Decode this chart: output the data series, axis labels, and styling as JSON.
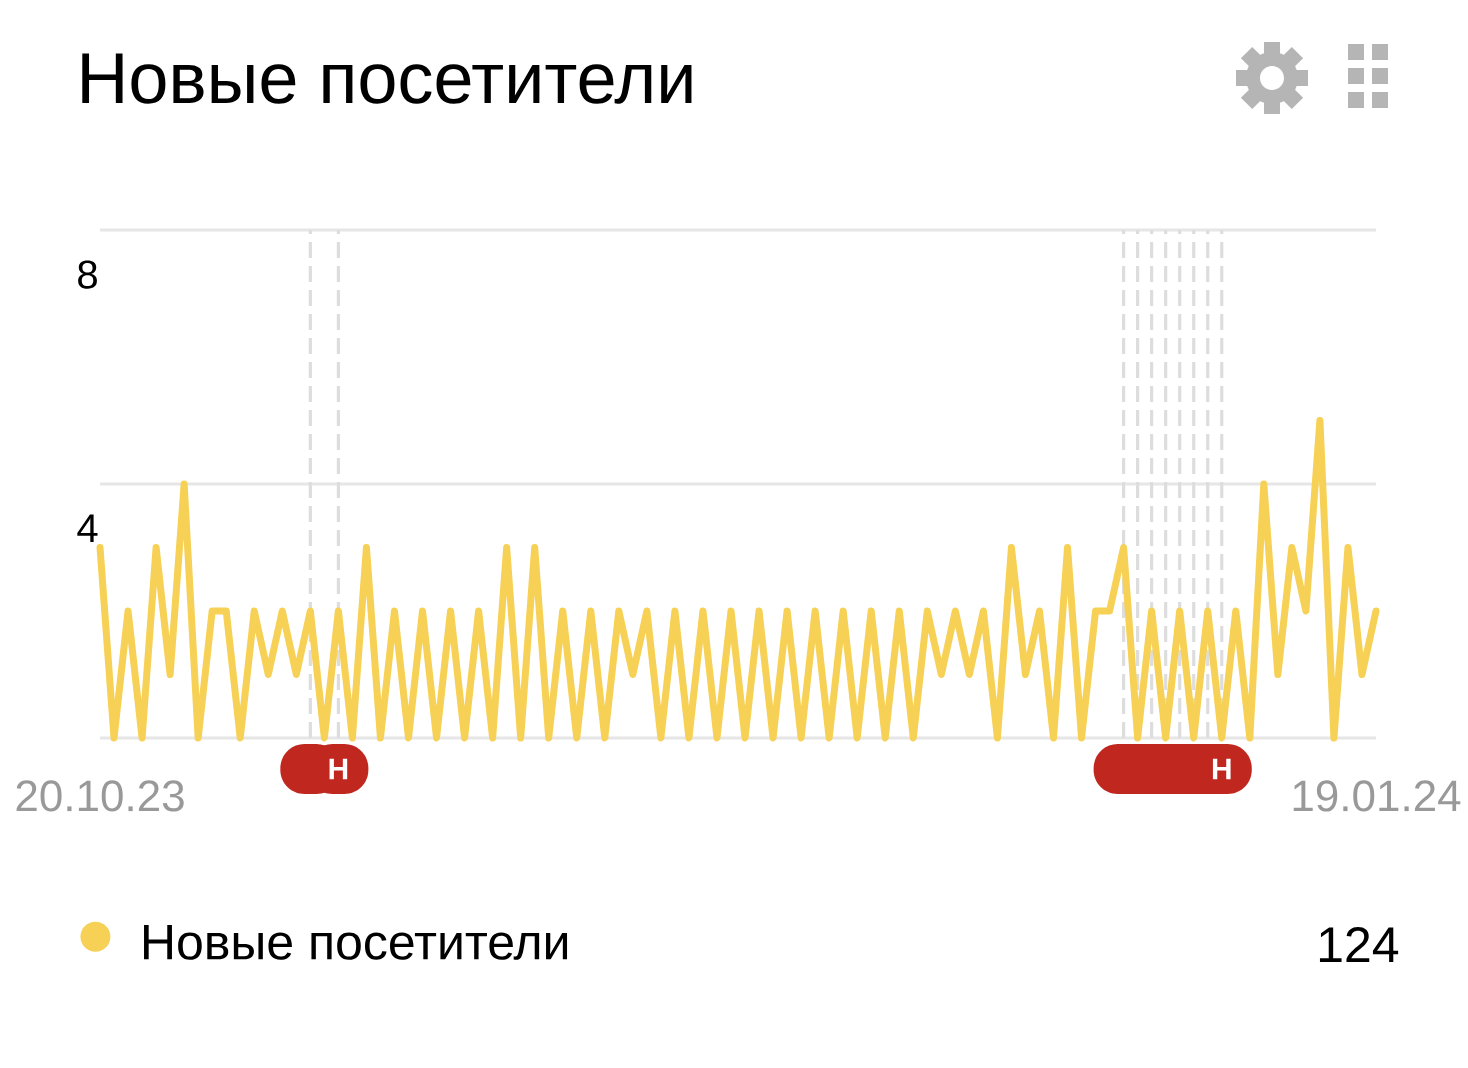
{
  "chart_data": {
    "type": "line",
    "title": "Новые посетители",
    "x": [
      "2023-10-20",
      "2023-10-21",
      "2023-10-22",
      "2023-10-23",
      "2023-10-24",
      "2023-10-25",
      "2023-10-26",
      "2023-10-27",
      "2023-10-28",
      "2023-10-29",
      "2023-10-30",
      "2023-10-31",
      "2023-11-01",
      "2023-11-02",
      "2023-11-03",
      "2023-11-04",
      "2023-11-05",
      "2023-11-06",
      "2023-11-07",
      "2023-11-08",
      "2023-11-09",
      "2023-11-10",
      "2023-11-11",
      "2023-11-12",
      "2023-11-13",
      "2023-11-14",
      "2023-11-15",
      "2023-11-16",
      "2023-11-17",
      "2023-11-18",
      "2023-11-19",
      "2023-11-20",
      "2023-11-21",
      "2023-11-22",
      "2023-11-23",
      "2023-11-24",
      "2023-11-25",
      "2023-11-26",
      "2023-11-27",
      "2023-11-28",
      "2023-11-29",
      "2023-11-30",
      "2023-12-01",
      "2023-12-02",
      "2023-12-03",
      "2023-12-04",
      "2023-12-05",
      "2023-12-06",
      "2023-12-07",
      "2023-12-08",
      "2023-12-09",
      "2023-12-10",
      "2023-12-11",
      "2023-12-12",
      "2023-12-13",
      "2023-12-14",
      "2023-12-15",
      "2023-12-16",
      "2023-12-17",
      "2023-12-18",
      "2023-12-19",
      "2023-12-20",
      "2023-12-21",
      "2023-12-22",
      "2023-12-23",
      "2023-12-24",
      "2023-12-25",
      "2023-12-26",
      "2023-12-27",
      "2023-12-28",
      "2023-12-29",
      "2023-12-30",
      "2023-12-31",
      "2024-01-01",
      "2024-01-02",
      "2024-01-03",
      "2024-01-04",
      "2024-01-05",
      "2024-01-06",
      "2024-01-07",
      "2024-01-08",
      "2024-01-09",
      "2024-01-10",
      "2024-01-11",
      "2024-01-12",
      "2024-01-13",
      "2024-01-14",
      "2024-01-15",
      "2024-01-16",
      "2024-01-17",
      "2024-01-18",
      "2024-01-19"
    ],
    "series": [
      {
        "name": "Новые посетители",
        "color": "#f6d155",
        "values": [
          3,
          0,
          2,
          0,
          3,
          1,
          4,
          0,
          2,
          2,
          0,
          2,
          1,
          2,
          1,
          2,
          0,
          2,
          0,
          3,
          0,
          2,
          0,
          2,
          0,
          2,
          0,
          2,
          0,
          3,
          0,
          3,
          0,
          2,
          0,
          2,
          0,
          2,
          1,
          2,
          0,
          2,
          0,
          2,
          0,
          2,
          0,
          2,
          0,
          2,
          0,
          2,
          0,
          2,
          0,
          2,
          0,
          2,
          0,
          2,
          1,
          2,
          1,
          2,
          0,
          3,
          1,
          2,
          0,
          3,
          0,
          2,
          2,
          3,
          0,
          2,
          0,
          2,
          0,
          2,
          0,
          2,
          0,
          4,
          1,
          3,
          2,
          5,
          0,
          3,
          1,
          2
        ]
      }
    ],
    "xlim": [
      "2023-10-20",
      "2024-01-19"
    ],
    "xticks": [
      {
        "value": "2023-10-20",
        "label": "20.10.23"
      },
      {
        "value": "2024-01-19",
        "label": "19.01.24"
      }
    ],
    "ylim": [
      0,
      8
    ],
    "yticks": [
      {
        "value": 0,
        "label": null
      },
      4,
      8
    ],
    "grid": "y",
    "legend": "bottom",
    "annotations": [
      "124"
    ],
    "ref_lines": [
      {
        "axis": "x",
        "value": "2023-11-04",
        "color": "#dddddd",
        "line_style": "dashed"
      },
      {
        "axis": "x",
        "value": "2023-11-06",
        "label": "Н",
        "color": "#dddddd",
        "line_style": "dashed"
      },
      {
        "axis": "x",
        "value": "2024-01-01",
        "color": "#dddddd",
        "line_style": "dashed"
      },
      {
        "axis": "x",
        "value": "2024-01-02",
        "color": "#dddddd",
        "line_style": "dashed"
      },
      {
        "axis": "x",
        "value": "2024-01-03",
        "color": "#dddddd",
        "line_style": "dashed"
      },
      {
        "axis": "x",
        "value": "2024-01-04",
        "color": "#dddddd",
        "line_style": "dashed"
      },
      {
        "axis": "x",
        "value": "2024-01-05",
        "color": "#dddddd",
        "line_style": "dashed"
      },
      {
        "axis": "x",
        "value": "2024-01-06",
        "color": "#dddddd",
        "line_style": "dashed"
      },
      {
        "axis": "x",
        "value": "2024-01-07",
        "color": "#dddddd",
        "line_style": "dashed"
      },
      {
        "axis": "x",
        "value": "2024-01-08",
        "label": "Н",
        "color": "#dddddd",
        "line_style": "dashed"
      }
    ]
  }
}
